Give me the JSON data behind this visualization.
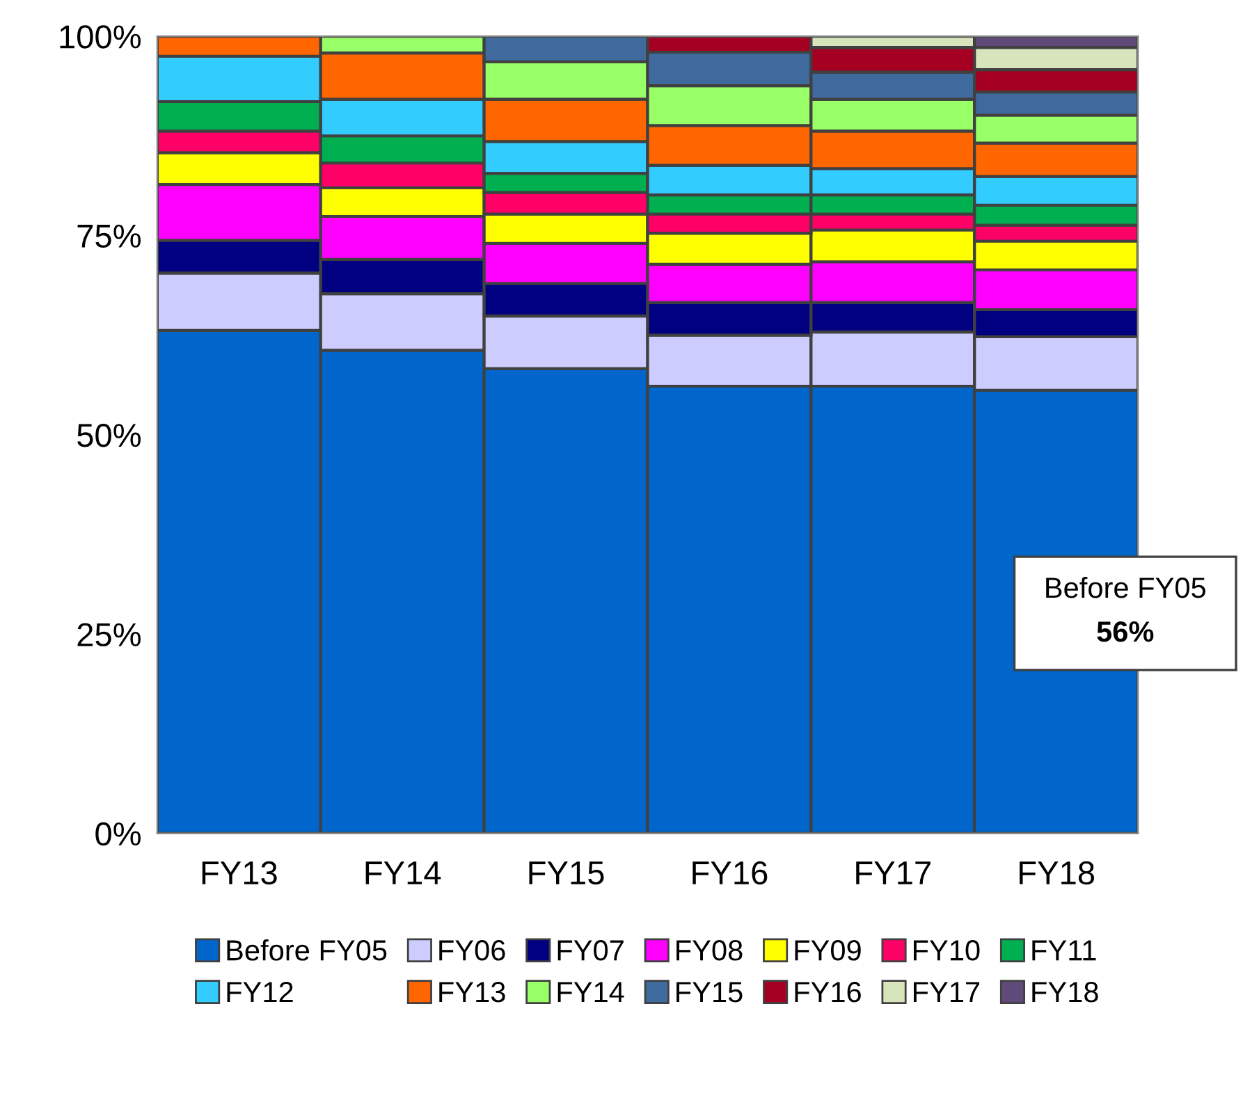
{
  "chart_data": {
    "type": "bar",
    "stacked": true,
    "categories": [
      "FY13",
      "FY14",
      "FY15",
      "FY16",
      "FY17",
      "FY18"
    ],
    "ylim": [
      0,
      100
    ],
    "yticks": [
      {
        "value": 0,
        "label": "0%"
      },
      {
        "value": 25,
        "label": "25%"
      },
      {
        "value": 50,
        "label": "50%"
      },
      {
        "value": 75,
        "label": "75%"
      },
      {
        "value": 100,
        "label": "100%"
      }
    ],
    "grid": false,
    "legend": "bottom",
    "series": [
      {
        "name": "Before FY05",
        "color": "#0066cc",
        "values": [
          63.1,
          60.6,
          58.3,
          56.1,
          56.1,
          55.6
        ]
      },
      {
        "name": "FY06",
        "color": "#ccccff",
        "values": [
          7.2,
          7.1,
          6.6,
          6.4,
          6.8,
          6.7
        ]
      },
      {
        "name": "FY07",
        "color": "#000080",
        "values": [
          4.1,
          4.3,
          4.1,
          4.1,
          3.7,
          3.4
        ]
      },
      {
        "name": "FY08",
        "color": "#ff00ff",
        "values": [
          7.0,
          5.4,
          5.0,
          4.8,
          5.1,
          5.0
        ]
      },
      {
        "name": "FY09",
        "color": "#ffff00",
        "values": [
          4.0,
          3.6,
          3.7,
          3.9,
          4.0,
          3.6
        ]
      },
      {
        "name": "FY10",
        "color": "#ff0066",
        "values": [
          2.7,
          3.1,
          2.7,
          2.4,
          2.0,
          2.0
        ]
      },
      {
        "name": "FY11",
        "color": "#00b050",
        "values": [
          3.7,
          3.4,
          2.4,
          2.4,
          2.4,
          2.5
        ]
      },
      {
        "name": "FY12",
        "color": "#33ccff",
        "values": [
          5.7,
          4.6,
          4.0,
          3.7,
          3.3,
          3.6
        ]
      },
      {
        "name": "FY13",
        "color": "#ff6600",
        "values": [
          2.5,
          5.8,
          5.3,
          5.0,
          4.7,
          4.2
        ]
      },
      {
        "name": "FY14",
        "color": "#99ff66",
        "values": [
          null,
          2.1,
          4.7,
          5.0,
          4.0,
          3.5
        ]
      },
      {
        "name": "FY15",
        "color": "#3f6a9e",
        "values": [
          null,
          null,
          3.2,
          4.2,
          3.4,
          2.9
        ]
      },
      {
        "name": "FY16",
        "color": "#a50021",
        "values": [
          null,
          null,
          null,
          2.0,
          3.1,
          2.8
        ]
      },
      {
        "name": "FY17",
        "color": "#d8e4bc",
        "values": [
          null,
          null,
          null,
          null,
          1.4,
          2.8
        ]
      },
      {
        "name": "FY18",
        "color": "#604a7b",
        "values": [
          null,
          null,
          null,
          null,
          null,
          1.4
        ]
      }
    ],
    "annotations": [
      "Before FY05",
      "56%"
    ]
  }
}
